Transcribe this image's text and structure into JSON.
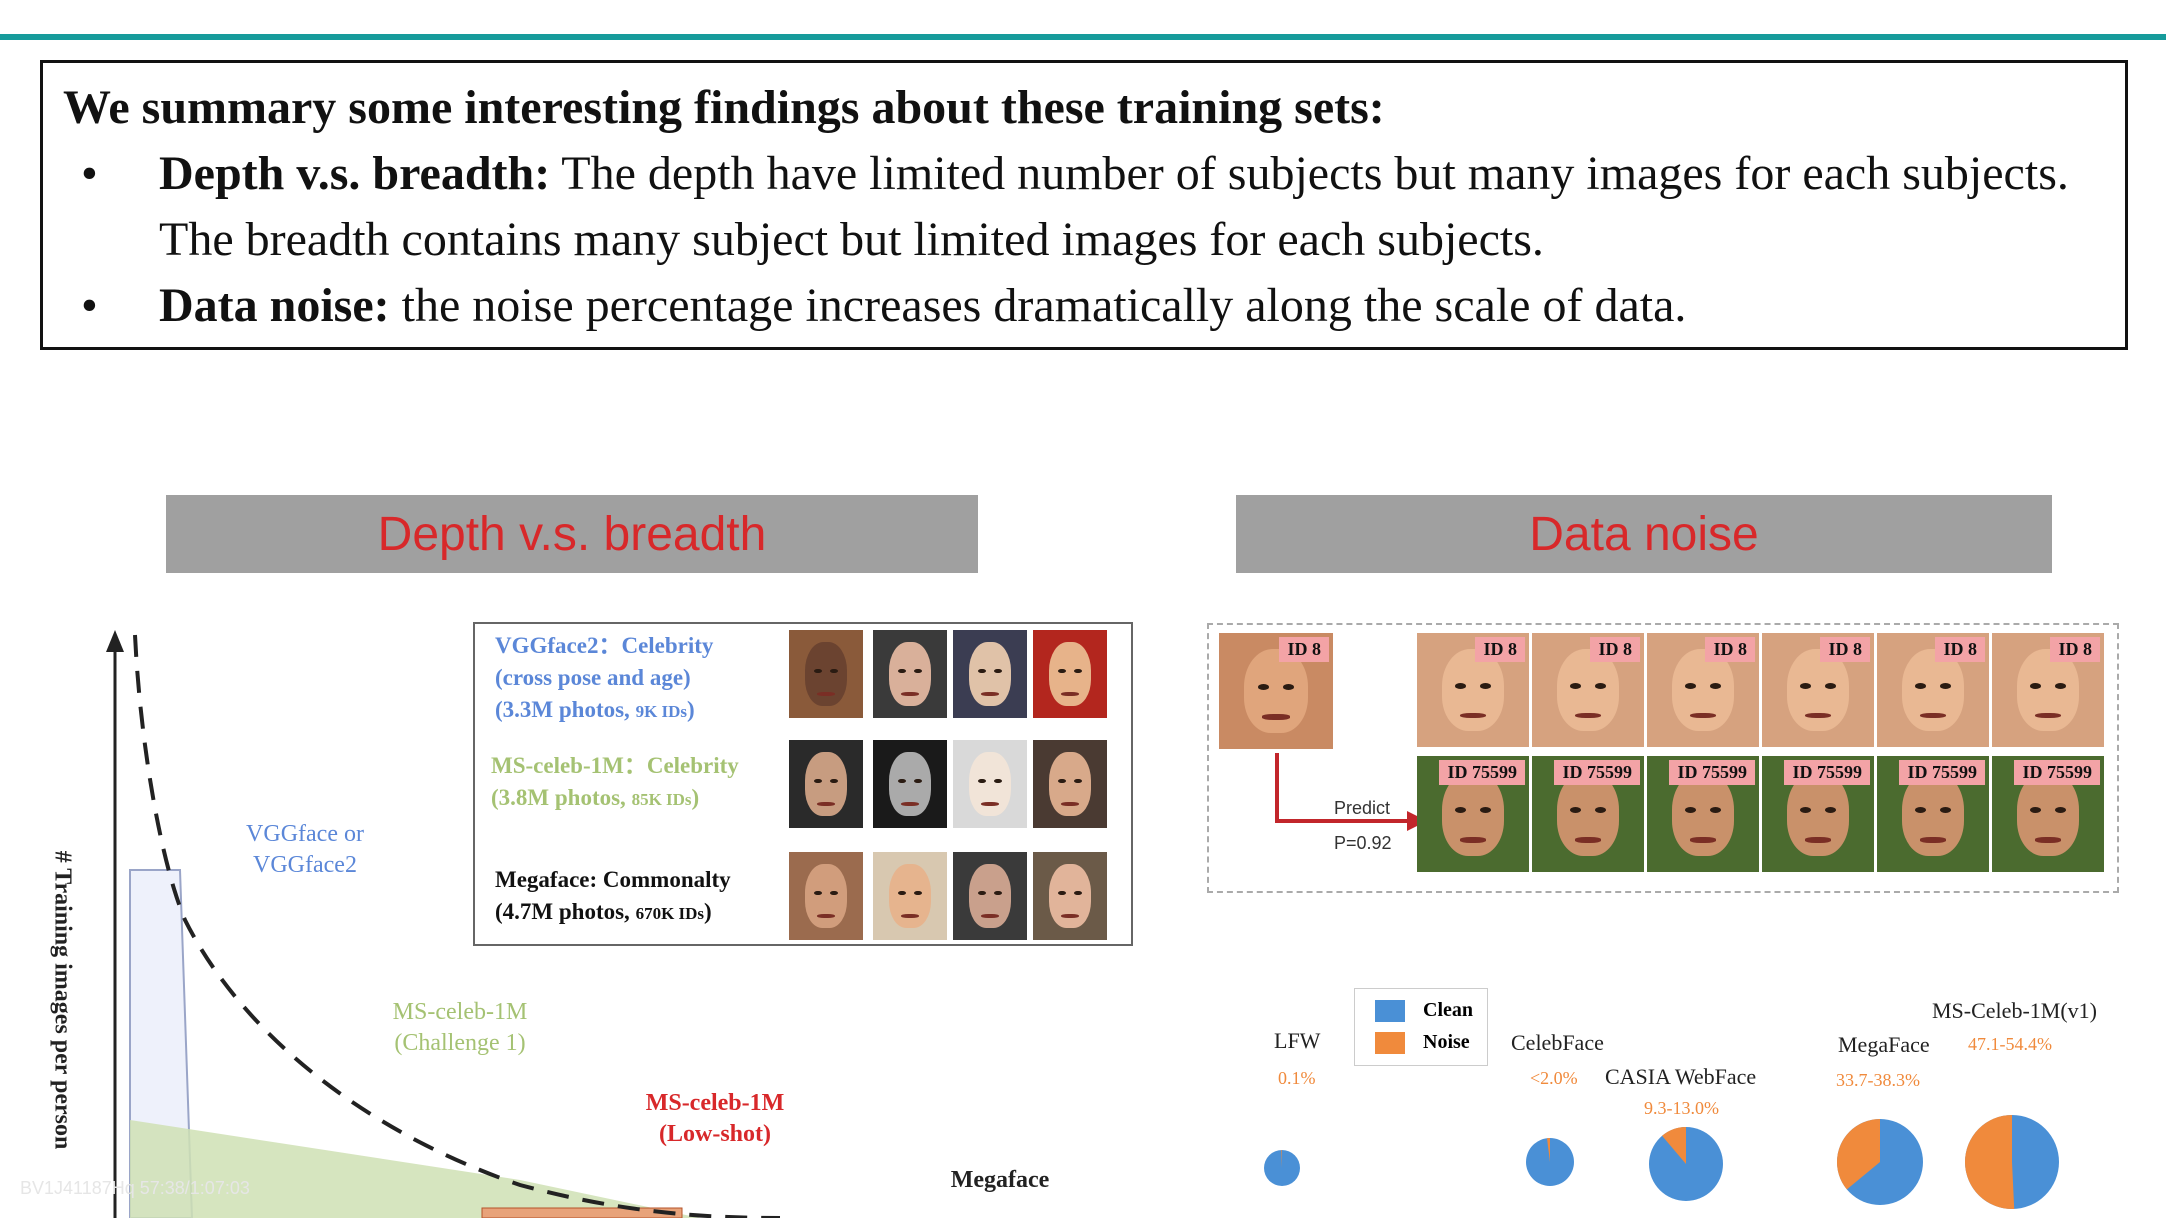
{
  "summary": {
    "intro": "We summary some interesting findings about these training sets:",
    "bullets": [
      {
        "bold": "Depth v.s. breadth:",
        "text": " The depth have limited number of subjects but many images for each subjects. The breadth contains many subject but limited images for each subjects."
      },
      {
        "bold": "Data noise:",
        "text": " the noise percentage increases dramatically along the scale of data."
      }
    ]
  },
  "sections": {
    "left": "Depth v.s. breadth",
    "right": "Data noise"
  },
  "depth_chart": {
    "ylabel": "# Training images per person",
    "labels": {
      "vgg": "VGGface or\nVGGface2",
      "mschallenge": "MS-celeb-1M\n(Challenge 1)",
      "mslow": "MS-celeb-1M\n(Low-shot)",
      "megaface": "Megaface"
    }
  },
  "dataset_box": {
    "vgg2_line1": "VGGface2：Celebrity",
    "vgg2_line2": "(cross pose and age)",
    "vgg2_line3": "(3.3M photos, ",
    "vgg2_line3_small": "9K IDs",
    "ms_line1": "MS-celeb-1M：Celebrity",
    "ms_line2": "(3.8M photos, ",
    "ms_line2_small": "85K IDs",
    "mega_line1": "Megaface: Commonalty",
    "mega_line2": "(4.7M photos, ",
    "mega_line2_small": "670K IDs"
  },
  "noise_panel": {
    "query_tag": "ID 8",
    "row1_tag": "ID 8",
    "row2_tag": "ID 75599",
    "predict_label": "Predict",
    "predict_p": "P=0.92"
  },
  "pie_legend": {
    "clean": "Clean",
    "noise": "Noise",
    "clean_color": "#4a90d6",
    "noise_color": "#f08a3c"
  },
  "chart_data": {
    "type": "pie",
    "series": [
      {
        "name": "LFW",
        "noise_pct": "0.1%",
        "noise_value": 0.1
      },
      {
        "name": "CelebFace",
        "noise_pct": "<2.0%",
        "noise_value": 2.0
      },
      {
        "name": "CASIA WebFace",
        "noise_pct": "9.3-13.0%",
        "noise_value": 11.2
      },
      {
        "name": "MegaFace",
        "noise_pct": "33.7-38.3%",
        "noise_value": 36.0
      },
      {
        "name": "MS-Celeb-1M(v1)",
        "noise_pct": "47.1-54.4%",
        "noise_value": 50.75
      }
    ]
  },
  "watermark": "BV1J41187Hq 57:38/1:07:03"
}
